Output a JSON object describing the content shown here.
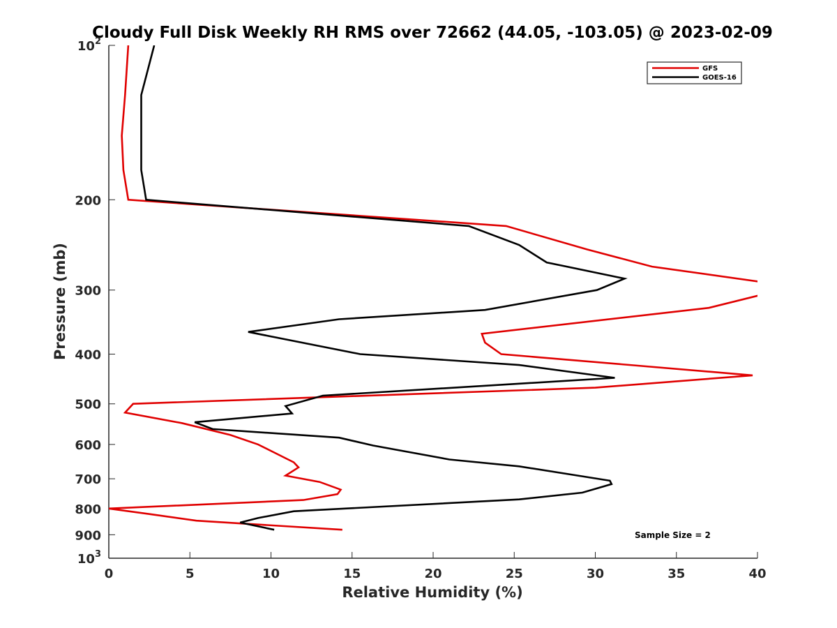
{
  "chart_data": {
    "type": "line",
    "title": "Cloudy Full Disk Weekly RH RMS over 72662 (44.05, -103.05) @ 2023-02-09",
    "xlabel": "Relative Humidity (%)",
    "ylabel": "Pressure (mb)",
    "xlim": [
      0,
      40
    ],
    "ylim": [
      100,
      1000
    ],
    "y_scale": "log",
    "y_reversed": true,
    "grid": false,
    "legend_position": "top-right",
    "x_ticks": [
      "0",
      "5",
      "10",
      "15",
      "20",
      "25",
      "30",
      "35",
      "40"
    ],
    "y_ticks": [
      {
        "value": 100,
        "base": "10",
        "exp": "2"
      },
      {
        "value": 200,
        "label": "200"
      },
      {
        "value": 300,
        "label": "300"
      },
      {
        "value": 400,
        "label": "400"
      },
      {
        "value": 500,
        "label": "500"
      },
      {
        "value": 600,
        "label": "600"
      },
      {
        "value": 700,
        "label": "700"
      },
      {
        "value": 800,
        "label": "800"
      },
      {
        "value": 900,
        "label": "900"
      },
      {
        "value": 1000,
        "base": "10",
        "exp": "3"
      }
    ],
    "annotation": "Sample Size = 2",
    "series": [
      {
        "name": "GFS",
        "color": "#e00000",
        "points": [
          [
            1.2,
            100
          ],
          [
            1.0,
            125
          ],
          [
            0.8,
            150
          ],
          [
            0.9,
            175
          ],
          [
            1.2,
            200
          ],
          [
            24.5,
            225
          ],
          [
            29.5,
            250
          ],
          [
            33.5,
            270
          ],
          [
            40.5,
            290
          ],
          [
            40.5,
            305
          ],
          [
            37,
            325
          ],
          [
            23,
            365
          ],
          [
            23.2,
            380
          ],
          [
            24.2,
            400
          ],
          [
            39.7,
            440
          ],
          [
            30,
            465
          ],
          [
            1.5,
            500
          ],
          [
            1.0,
            520
          ],
          [
            4.5,
            545
          ],
          [
            7.5,
            575
          ],
          [
            9.2,
            600
          ],
          [
            11.4,
            650
          ],
          [
            11.7,
            665
          ],
          [
            10.9,
            690
          ],
          [
            13,
            710
          ],
          [
            14.3,
            735
          ],
          [
            14.1,
            750
          ],
          [
            12,
            770
          ],
          [
            0,
            800
          ],
          [
            2.5,
            820
          ],
          [
            5.4,
            845
          ],
          [
            14.4,
            880
          ]
        ]
      },
      {
        "name": "GOES-16",
        "color": "#000000",
        "points": [
          [
            2.8,
            100
          ],
          [
            2.0,
            125
          ],
          [
            2.0,
            150
          ],
          [
            2.0,
            175
          ],
          [
            2.3,
            200
          ],
          [
            22.2,
            225
          ],
          [
            25.3,
            245
          ],
          [
            27,
            265
          ],
          [
            31.8,
            285
          ],
          [
            30.1,
            300
          ],
          [
            23.2,
            328
          ],
          [
            14.2,
            342
          ],
          [
            8.6,
            362
          ],
          [
            15.5,
            400
          ],
          [
            25.3,
            420
          ],
          [
            31.2,
            445
          ],
          [
            13.2,
            482
          ],
          [
            10.9,
            505
          ],
          [
            11.3,
            522
          ],
          [
            5.3,
            543
          ],
          [
            6.4,
            560
          ],
          [
            14.2,
            582
          ],
          [
            16.3,
            603
          ],
          [
            21.0,
            642
          ],
          [
            25.3,
            662
          ],
          [
            30.9,
            706
          ],
          [
            31.0,
            717
          ],
          [
            29.2,
            745
          ],
          [
            25.3,
            768
          ],
          [
            11.4,
            810
          ],
          [
            9.2,
            835
          ],
          [
            8.1,
            852
          ],
          [
            10.2,
            880
          ]
        ]
      }
    ]
  }
}
